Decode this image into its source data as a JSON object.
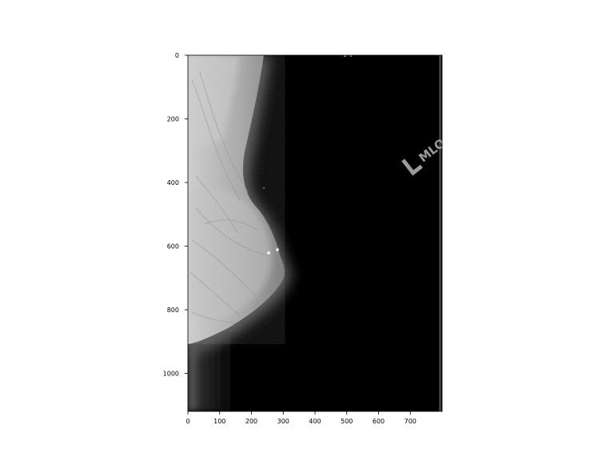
{
  "image": {
    "kind": "mammogram",
    "view_marker": "MLO",
    "laterality_marker": "L",
    "background_color": "#000000",
    "tissue_color": "#b8b8b8"
  },
  "axes": {
    "x": {
      "range": [
        0,
        800
      ],
      "ticks": [
        0,
        100,
        200,
        300,
        400,
        500,
        600,
        700
      ],
      "tick_labels": [
        "0",
        "100",
        "200",
        "300",
        "400",
        "500",
        "600",
        "700"
      ]
    },
    "y": {
      "range": [
        0,
        1120
      ],
      "inverted": true,
      "ticks": [
        0,
        200,
        400,
        600,
        800,
        1000
      ],
      "tick_labels": [
        "0",
        "200",
        "400",
        "600",
        "800",
        "1000"
      ]
    },
    "grid": false
  }
}
